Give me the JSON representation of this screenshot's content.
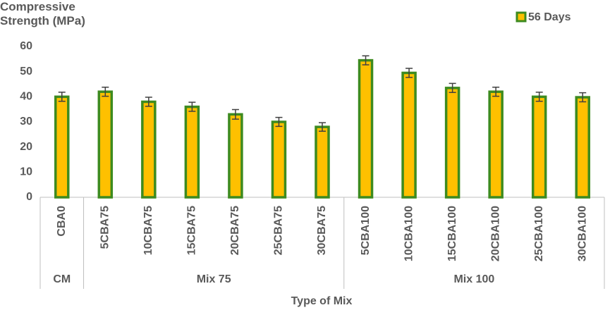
{
  "chart_data": {
    "type": "bar",
    "y_label": "Compressive Strength (MPa)",
    "x_label": "Type of Mix",
    "categories": [
      "CBA0",
      "5CBA75",
      "10CBA75",
      "15CBA75",
      "20CBA75",
      "25CBA75",
      "30CBA75",
      "5CBA100",
      "10CBA100",
      "15CBA100",
      "20CBA100",
      "25CBA100",
      "30CBA100"
    ],
    "groups": [
      {
        "label": "CM",
        "span": 1
      },
      {
        "label": "Mix 75",
        "span": 6
      },
      {
        "label": "Mix 100",
        "span": 6
      }
    ],
    "series": [
      {
        "name": "56 Days",
        "color": "#ffc000",
        "edge": "#3d8b1f",
        "values": [
          40,
          42,
          38,
          36,
          33,
          30,
          28,
          54.5,
          49.5,
          43.5,
          42,
          40,
          39.8
        ],
        "errors": [
          1.8,
          1.8,
          1.8,
          1.8,
          1.9,
          1.8,
          1.7,
          1.8,
          1.8,
          1.8,
          1.8,
          1.8,
          1.8
        ]
      }
    ],
    "ylim": [
      0,
      60
    ],
    "yticks": [
      0,
      10,
      20,
      30,
      40,
      50,
      60
    ],
    "legend": "top-right",
    "grid": false
  }
}
